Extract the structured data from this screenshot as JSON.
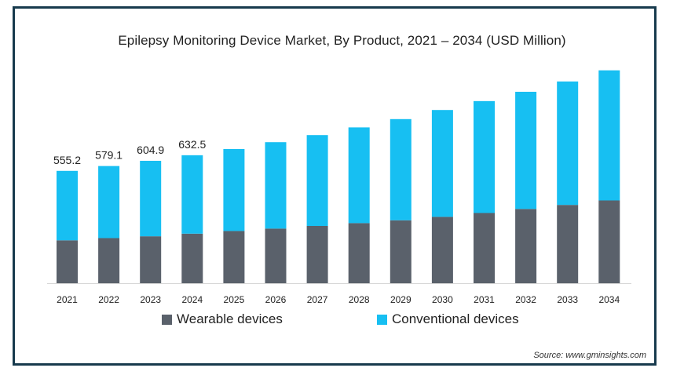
{
  "chart_data": {
    "type": "bar",
    "stacked": true,
    "title": "Epilepsy Monitoring Device Market, By Product, 2021 – 2034 (USD Million)",
    "categories": [
      "2021",
      "2022",
      "2023",
      "2024",
      "2025",
      "2026",
      "2027",
      "2028",
      "2029",
      "2030",
      "2031",
      "2032",
      "2033",
      "2034"
    ],
    "series": [
      {
        "name": "Wearable devices",
        "color": "#5a616b",
        "values": [
          212,
          223,
          232,
          245,
          258,
          270,
          283,
          297,
          311,
          328,
          347,
          367,
          387,
          409
        ]
      },
      {
        "name": "Conventional devices",
        "color": "#17bff2",
        "values": [
          343.2,
          356.1,
          372.9,
          387.5,
          405,
          427,
          449,
          473,
          500,
          528,
          553,
          579,
          610,
          643
        ]
      }
    ],
    "data_labels": [
      "555.2",
      "579.1",
      "604.9",
      "632.5"
    ],
    "ylim": [
      0,
      1070
    ],
    "grid": false,
    "legend_position": "bottom"
  },
  "source": "Source: www.gminsights.com"
}
